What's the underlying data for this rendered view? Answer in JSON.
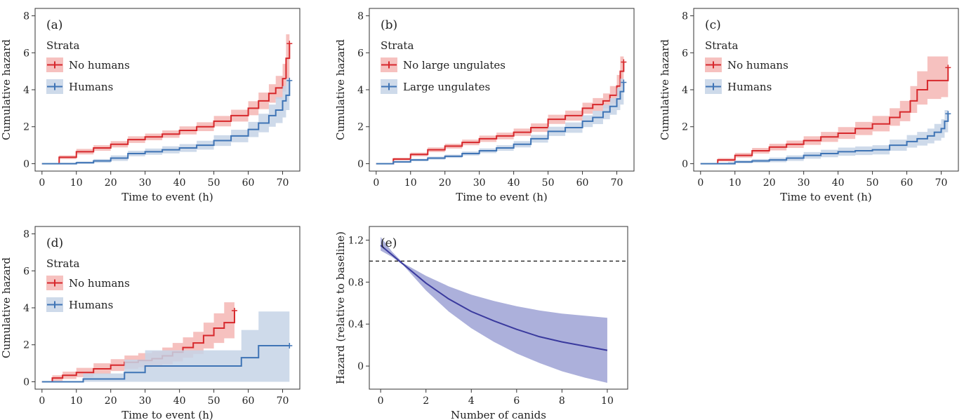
{
  "figure": {
    "background": "#ffffff",
    "colors": {
      "red": "#d7282c",
      "red_fill": "#f4b6b4",
      "blue": "#3f74b5",
      "blue_fill": "#c6d3e6",
      "navy": "#3a3a9e",
      "navy_fill": "#a8acd9"
    }
  },
  "chart_data": [
    {
      "id": "a",
      "type": "line",
      "panel_label": "(a)",
      "xlabel": "Time to event (h)",
      "ylabel": "Cumulative hazard",
      "xlim": [
        -2,
        75
      ],
      "ylim": [
        -0.4,
        8.4
      ],
      "xticks": [
        0,
        10,
        20,
        30,
        40,
        50,
        60,
        70
      ],
      "yticks": [
        0,
        2,
        4,
        6,
        8
      ],
      "legend": {
        "title": "Strata",
        "location": "top-left"
      },
      "series": [
        {
          "name": "No humans",
          "color": "#d7282c",
          "band_color": "#f4b6b4",
          "step": true,
          "x": [
            0,
            5,
            10,
            15,
            20,
            25,
            30,
            35,
            40,
            45,
            50,
            55,
            60,
            63,
            66,
            68,
            70,
            71,
            72
          ],
          "y": [
            0,
            0.35,
            0.65,
            0.85,
            1.05,
            1.3,
            1.45,
            1.6,
            1.8,
            2.0,
            2.3,
            2.6,
            3.0,
            3.4,
            3.8,
            4.1,
            4.6,
            5.7,
            6.5
          ],
          "lower": [
            0,
            0.25,
            0.5,
            0.7,
            0.88,
            1.12,
            1.27,
            1.4,
            1.58,
            1.76,
            2.02,
            2.28,
            2.62,
            2.95,
            3.3,
            3.5,
            3.9,
            4.6,
            5.0
          ],
          "upper": [
            0,
            0.45,
            0.8,
            1.0,
            1.22,
            1.48,
            1.63,
            1.8,
            2.02,
            2.24,
            2.58,
            2.92,
            3.38,
            3.85,
            4.3,
            4.75,
            5.4,
            7.0,
            8.5
          ]
        },
        {
          "name": "Humans",
          "color": "#3f74b5",
          "band_color": "#c6d3e6",
          "step": true,
          "x": [
            0,
            5,
            10,
            15,
            20,
            25,
            30,
            35,
            40,
            45,
            50,
            55,
            60,
            63,
            66,
            68,
            70,
            71,
            72
          ],
          "y": [
            0,
            0.0,
            0.05,
            0.15,
            0.3,
            0.55,
            0.65,
            0.75,
            0.85,
            1.0,
            1.25,
            1.5,
            1.85,
            2.2,
            2.6,
            2.9,
            3.4,
            3.7,
            4.5
          ],
          "lower": [
            0,
            0.0,
            0.0,
            0.05,
            0.15,
            0.4,
            0.48,
            0.56,
            0.64,
            0.76,
            0.96,
            1.16,
            1.44,
            1.7,
            2.0,
            2.2,
            2.5,
            2.9,
            3.3
          ],
          "upper": [
            0,
            0.05,
            0.12,
            0.25,
            0.45,
            0.7,
            0.82,
            0.94,
            1.06,
            1.24,
            1.54,
            1.84,
            2.26,
            2.7,
            3.2,
            3.6,
            4.2,
            4.6,
            6.5
          ]
        }
      ]
    },
    {
      "id": "b",
      "type": "line",
      "panel_label": "(b)",
      "xlabel": "Time to event (h)",
      "ylabel": "Cumulative hazard",
      "xlim": [
        -2,
        75
      ],
      "ylim": [
        -0.4,
        8.4
      ],
      "xticks": [
        0,
        10,
        20,
        30,
        40,
        50,
        60,
        70
      ],
      "yticks": [
        0,
        2,
        4,
        6,
        8
      ],
      "legend": {
        "title": "Strata",
        "location": "top-left"
      },
      "series": [
        {
          "name": "No large ungulates",
          "color": "#d7282c",
          "band_color": "#f4b6b4",
          "step": true,
          "x": [
            0,
            5,
            10,
            15,
            20,
            25,
            30,
            35,
            40,
            45,
            50,
            55,
            60,
            63,
            66,
            68,
            70,
            71,
            72
          ],
          "y": [
            0,
            0.25,
            0.5,
            0.75,
            0.95,
            1.15,
            1.35,
            1.5,
            1.7,
            1.95,
            2.4,
            2.6,
            3.0,
            3.2,
            3.4,
            3.7,
            4.2,
            5.0,
            5.5
          ],
          "lower": [
            0,
            0.18,
            0.4,
            0.63,
            0.82,
            1.0,
            1.18,
            1.32,
            1.5,
            1.72,
            2.15,
            2.33,
            2.7,
            2.85,
            3.0,
            3.25,
            3.6,
            4.2,
            4.5
          ],
          "upper": [
            0,
            0.32,
            0.6,
            0.88,
            1.08,
            1.3,
            1.52,
            1.68,
            1.9,
            2.18,
            2.65,
            2.87,
            3.3,
            3.55,
            3.8,
            4.2,
            4.8,
            5.8,
            6.9
          ]
        },
        {
          "name": "Large ungulates",
          "color": "#3f74b5",
          "band_color": "#c6d3e6",
          "step": true,
          "x": [
            0,
            5,
            10,
            15,
            20,
            25,
            30,
            35,
            40,
            45,
            50,
            55,
            60,
            63,
            66,
            68,
            70,
            71,
            72
          ],
          "y": [
            0,
            0.1,
            0.2,
            0.3,
            0.4,
            0.55,
            0.7,
            0.85,
            1.05,
            1.35,
            1.75,
            1.95,
            2.3,
            2.5,
            2.8,
            3.1,
            3.5,
            3.9,
            4.4
          ],
          "lower": [
            0,
            0.05,
            0.13,
            0.22,
            0.31,
            0.44,
            0.57,
            0.7,
            0.88,
            1.14,
            1.5,
            1.67,
            1.98,
            2.14,
            2.4,
            2.65,
            2.9,
            3.2,
            3.5
          ],
          "upper": [
            0,
            0.15,
            0.27,
            0.38,
            0.49,
            0.66,
            0.83,
            1.0,
            1.22,
            1.56,
            2.0,
            2.23,
            2.62,
            2.86,
            3.2,
            3.55,
            4.1,
            4.6,
            5.3
          ]
        }
      ]
    },
    {
      "id": "c",
      "type": "line",
      "panel_label": "(c)",
      "xlabel": "Time to event (h)",
      "ylabel": "Cumulative hazard",
      "xlim": [
        -2,
        75
      ],
      "ylim": [
        -0.4,
        8.4
      ],
      "xticks": [
        0,
        10,
        20,
        30,
        40,
        50,
        60,
        70
      ],
      "yticks": [
        0,
        2,
        4,
        6,
        8
      ],
      "legend": {
        "title": "Strata",
        "location": "top-left"
      },
      "series": [
        {
          "name": "No humans",
          "color": "#d7282c",
          "band_color": "#f4b6b4",
          "step": true,
          "x": [
            0,
            5,
            10,
            15,
            20,
            25,
            30,
            35,
            40,
            45,
            50,
            55,
            58,
            61,
            63,
            66,
            70,
            72
          ],
          "y": [
            0,
            0.2,
            0.45,
            0.7,
            0.9,
            1.05,
            1.25,
            1.45,
            1.65,
            1.9,
            2.15,
            2.5,
            2.8,
            3.4,
            4.0,
            4.5,
            4.5,
            5.2
          ],
          "lower": [
            0,
            0.12,
            0.33,
            0.55,
            0.72,
            0.85,
            1.02,
            1.18,
            1.34,
            1.55,
            1.75,
            2.05,
            2.3,
            2.75,
            3.2,
            3.5,
            3.6,
            4.0
          ],
          "upper": [
            0,
            0.3,
            0.58,
            0.85,
            1.08,
            1.25,
            1.48,
            1.72,
            1.98,
            2.26,
            2.58,
            3.0,
            3.4,
            4.2,
            5.0,
            5.8,
            5.8,
            7.1
          ]
        },
        {
          "name": "Humans",
          "color": "#3f74b5",
          "band_color": "#c6d3e6",
          "step": true,
          "x": [
            0,
            5,
            8,
            10,
            15,
            20,
            25,
            30,
            35,
            40,
            45,
            50,
            55,
            60,
            63,
            66,
            68,
            70,
            71,
            72
          ],
          "y": [
            0,
            0.0,
            0.0,
            0.1,
            0.15,
            0.2,
            0.3,
            0.45,
            0.55,
            0.65,
            0.7,
            0.75,
            1.0,
            1.2,
            1.35,
            1.5,
            1.7,
            1.9,
            2.3,
            2.7
          ],
          "lower": [
            0,
            0.0,
            0.0,
            0.02,
            0.05,
            0.08,
            0.15,
            0.27,
            0.35,
            0.43,
            0.47,
            0.5,
            0.7,
            0.87,
            0.98,
            1.1,
            1.25,
            1.4,
            1.7,
            2.0
          ],
          "upper": [
            0,
            0.05,
            0.1,
            0.18,
            0.25,
            0.33,
            0.45,
            0.63,
            0.75,
            0.87,
            0.93,
            1.0,
            1.3,
            1.55,
            1.72,
            1.9,
            2.15,
            2.4,
            2.9,
            3.8
          ]
        }
      ]
    },
    {
      "id": "d",
      "type": "line",
      "panel_label": "(d)",
      "xlabel": "Time to event (h)",
      "ylabel": "Cumulative hazard",
      "xlim": [
        -2,
        75
      ],
      "ylim": [
        -0.4,
        8.4
      ],
      "xticks": [
        0,
        10,
        20,
        30,
        40,
        50,
        60,
        70
      ],
      "yticks": [
        0,
        2,
        4,
        6,
        8
      ],
      "legend": {
        "title": "Strata",
        "location": "top-left"
      },
      "series": [
        {
          "name": "No humans",
          "color": "#d7282c",
          "band_color": "#f4b6b4",
          "step": true,
          "x": [
            0,
            3,
            6,
            10,
            15,
            20,
            24,
            28,
            32,
            35,
            38,
            41,
            44,
            47,
            50,
            53,
            56
          ],
          "y": [
            0,
            0.2,
            0.35,
            0.5,
            0.7,
            0.9,
            1.05,
            1.15,
            1.25,
            1.4,
            1.6,
            1.85,
            2.1,
            2.5,
            2.9,
            3.2,
            3.85
          ],
          "lower": [
            0,
            0.05,
            0.15,
            0.25,
            0.42,
            0.58,
            0.7,
            0.78,
            0.85,
            0.95,
            1.1,
            1.3,
            1.5,
            1.8,
            2.1,
            2.35,
            2.7
          ],
          "upper": [
            0,
            0.35,
            0.55,
            0.75,
            1.0,
            1.22,
            1.42,
            1.55,
            1.65,
            1.85,
            2.1,
            2.4,
            2.7,
            3.2,
            3.7,
            4.3,
            5.7
          ]
        },
        {
          "name": "Humans",
          "color": "#3f74b5",
          "band_color": "#c6d3e6",
          "step": true,
          "x": [
            0,
            12,
            24,
            30,
            58,
            63,
            72
          ],
          "y": [
            0,
            0.15,
            0.5,
            0.85,
            1.3,
            1.95,
            1.95
          ],
          "lower": [
            0,
            0.0,
            0.0,
            0.0,
            0.0,
            0.0,
            0.0
          ],
          "upper": [
            0,
            0.45,
            1.2,
            1.7,
            2.8,
            3.8,
            3.8
          ]
        }
      ]
    },
    {
      "id": "e",
      "type": "line",
      "panel_label": "(e)",
      "xlabel": "Number of canids",
      "ylabel": "Hazard (relative to baseline)",
      "xlim": [
        -0.5,
        10.9
      ],
      "ylim": [
        -0.22,
        1.33
      ],
      "xticks": [
        0,
        2,
        4,
        6,
        8,
        10
      ],
      "yticks": [
        0,
        0.4,
        0.8,
        1.2
      ],
      "reference_line": 1.0,
      "series": [
        {
          "color": "#3a3a9e",
          "band_color": "#a8acd9",
          "step": false,
          "x": [
            0,
            0.5,
            1,
            2,
            3,
            4,
            5,
            6,
            7,
            8,
            9,
            10
          ],
          "y": [
            1.15,
            1.06,
            0.97,
            0.79,
            0.64,
            0.52,
            0.43,
            0.35,
            0.28,
            0.23,
            0.19,
            0.15
          ],
          "lower": [
            1.1,
            1.04,
            0.96,
            0.72,
            0.52,
            0.36,
            0.23,
            0.12,
            0.03,
            -0.05,
            -0.11,
            -0.16
          ],
          "upper": [
            1.23,
            1.09,
            0.98,
            0.86,
            0.76,
            0.68,
            0.62,
            0.57,
            0.53,
            0.5,
            0.48,
            0.46
          ]
        }
      ]
    }
  ]
}
